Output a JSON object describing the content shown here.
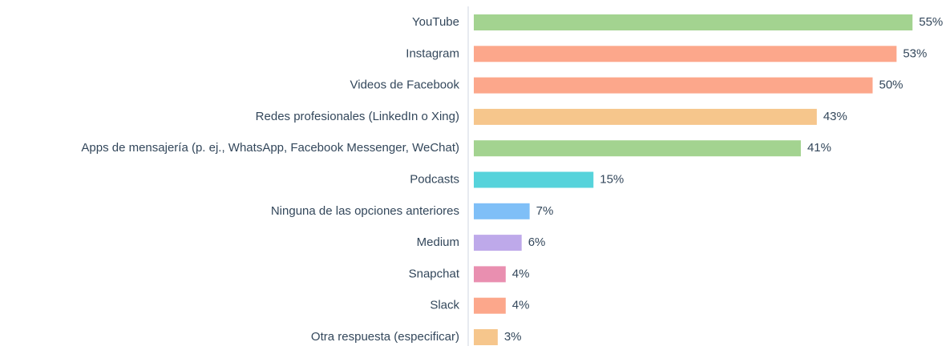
{
  "chart_data": {
    "type": "bar",
    "orientation": "horizontal",
    "categories": [
      "YouTube",
      "Instagram",
      "Videos de Facebook",
      "Redes profesionales (LinkedIn o Xing)",
      "Apps de mensajería (p. ej., WhatsApp, Facebook Messenger, WeChat)",
      "Podcasts",
      "Ninguna de las opciones anteriores",
      "Medium",
      "Snapchat",
      "Slack",
      "Otra respuesta (especificar)"
    ],
    "values": [
      55,
      53,
      50,
      43,
      41,
      15,
      7,
      6,
      4,
      4,
      3
    ],
    "value_labels": [
      "55%",
      "53%",
      "50%",
      "43%",
      "41%",
      "15%",
      "7%",
      "6%",
      "4%",
      "4%",
      "3%"
    ],
    "colors": [
      "#a3d390",
      "#fca78b",
      "#fca78b",
      "#f6c68c",
      "#a3d390",
      "#56d3db",
      "#7fbff7",
      "#bea9ea",
      "#e98fb0",
      "#fca78b",
      "#f6c68c"
    ]
  }
}
